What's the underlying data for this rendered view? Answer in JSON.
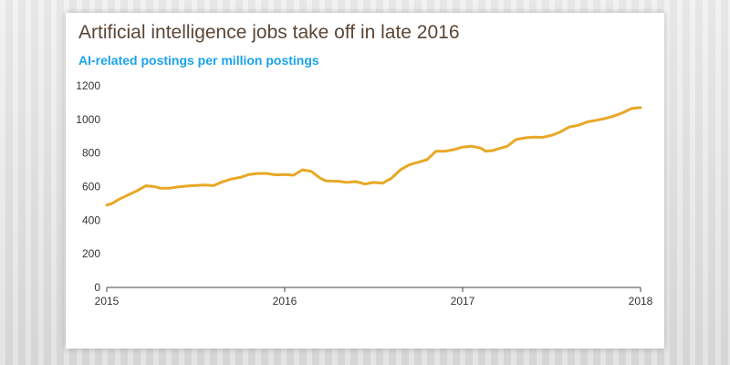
{
  "title": "Artificial intelligence jobs take off in late 2016",
  "subtitle": "AI-related postings per million postings",
  "colors": {
    "line": "#e8a826",
    "title": "#5a4636",
    "subtitle": "#1aa3e8",
    "axis": "#444444"
  },
  "chart_data": {
    "type": "line",
    "title": "Artificial intelligence jobs take off in late 2016",
    "subtitle": "AI-related postings per million postings",
    "xlabel": "",
    "ylabel": "",
    "xlim": [
      2015,
      2018
    ],
    "ylim": [
      0,
      1200
    ],
    "y_ticks": [
      0,
      200,
      400,
      600,
      800,
      1000,
      1200
    ],
    "x_ticks": [
      2015,
      2016,
      2017,
      2018
    ],
    "x_tick_labels": [
      "2015",
      "2016",
      "2017",
      "2018"
    ],
    "grid": false,
    "legend": "none",
    "series": [
      {
        "color": "#e8a826",
        "x": [
          2015.0,
          2015.03,
          2015.07,
          2015.12,
          2015.17,
          2015.22,
          2015.27,
          2015.3,
          2015.35,
          2015.4,
          2015.45,
          2015.5,
          2015.55,
          2015.6,
          2015.65,
          2015.7,
          2015.75,
          2015.8,
          2015.85,
          2015.9,
          2015.95,
          2016.0,
          2016.05,
          2016.1,
          2016.15,
          2016.2,
          2016.23,
          2016.27,
          2016.3,
          2016.35,
          2016.4,
          2016.45,
          2016.5,
          2016.55,
          2016.6,
          2016.65,
          2016.7,
          2016.75,
          2016.8,
          2016.85,
          2016.9,
          2016.95,
          2017.0,
          2017.05,
          2017.1,
          2017.13,
          2017.17,
          2017.2,
          2017.25,
          2017.3,
          2017.35,
          2017.4,
          2017.45,
          2017.5,
          2017.55,
          2017.6,
          2017.65,
          2017.7,
          2017.75,
          2017.8,
          2017.85,
          2017.9,
          2017.95,
          2018.0
        ],
        "y": [
          490,
          500,
          525,
          550,
          575,
          605,
          600,
          590,
          590,
          598,
          603,
          607,
          610,
          606,
          628,
          645,
          655,
          672,
          678,
          678,
          670,
          672,
          668,
          700,
          690,
          650,
          635,
          632,
          632,
          625,
          630,
          615,
          625,
          620,
          650,
          700,
          730,
          745,
          760,
          810,
          810,
          820,
          835,
          840,
          830,
          810,
          815,
          825,
          840,
          880,
          890,
          895,
          893,
          905,
          925,
          955,
          965,
          985,
          995,
          1005,
          1020,
          1040,
          1065,
          1070
        ]
      }
    ]
  }
}
